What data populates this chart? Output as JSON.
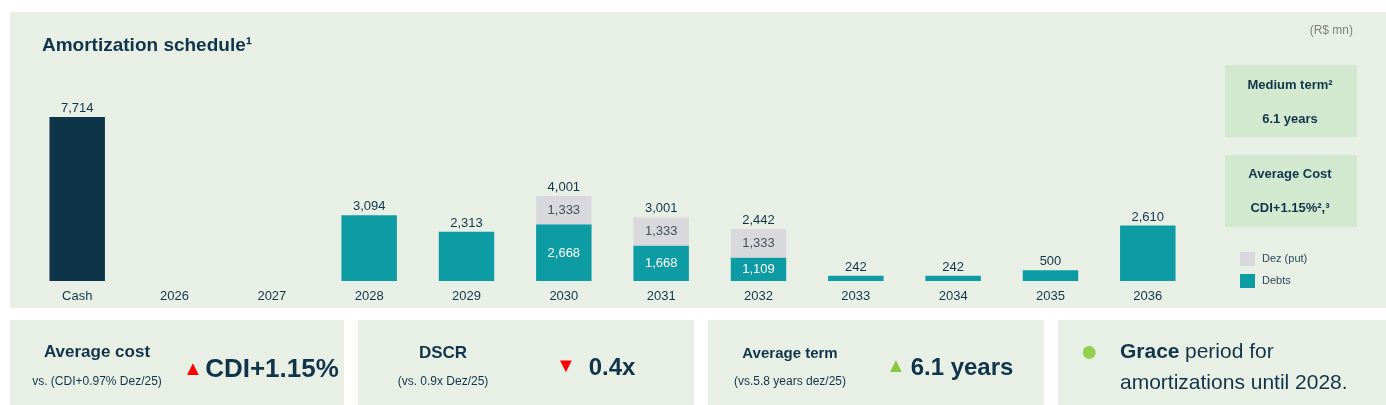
{
  "chart_data": {
    "type": "bar",
    "title": "Amortization schedule¹",
    "stacked": true,
    "legend": "right",
    "categories": [
      "Cash",
      "2026",
      "2027",
      "2028",
      "2029",
      "2030",
      "2031",
      "2032",
      "2033",
      "2034",
      "2035",
      "2036"
    ],
    "series": [
      {
        "color": "#0e3449",
        "values": [
          7714,
          null,
          null,
          null,
          null,
          null,
          null,
          null,
          null,
          null,
          null,
          null
        ],
        "value_labels": [
          "7,714",
          null,
          null,
          null,
          null,
          null,
          null,
          null,
          null,
          null,
          null,
          null
        ]
      },
      {
        "name": "Debts",
        "color": "#0e9ca4",
        "values": [
          null,
          null,
          null,
          3094,
          2313,
          2668,
          1668,
          1109,
          242,
          242,
          500,
          2610
        ],
        "value_labels": [
          null,
          null,
          null,
          "3,094",
          "2,313",
          "2,668",
          "1,668",
          "1,109",
          "242",
          "242",
          "500",
          "2,610"
        ]
      },
      {
        "name": "Dez (put)",
        "color": "#d9d9dd",
        "values": [
          null,
          null,
          null,
          null,
          null,
          1333,
          1333,
          1333,
          null,
          null,
          null,
          null
        ],
        "value_labels": [
          null,
          null,
          null,
          null,
          null,
          "1,333",
          "1,333",
          "1,333",
          null,
          null,
          null,
          null
        ]
      }
    ],
    "totals": [
      null,
      null,
      null,
      null,
      null,
      "4,001",
      "3,001",
      "2,442",
      null,
      null,
      null,
      null
    ],
    "annotations": [
      "(R$ mn)",
      "Medium term²",
      "6.1 years",
      "Average Cost",
      "CDI+1.15%²,³",
      "Average cost",
      "vs. (CDI+0.97% Dez/25)",
      "▲",
      "CDI+1.15%",
      "DSCR",
      "(vs. 0.9x Dez/25)",
      "▼",
      "0.4x",
      "Average term",
      "(vs.5.8 years dez/25)",
      "▲",
      "6.1 years",
      "●",
      "Grace",
      "period for",
      "amortizations until 2028."
    ]
  }
}
